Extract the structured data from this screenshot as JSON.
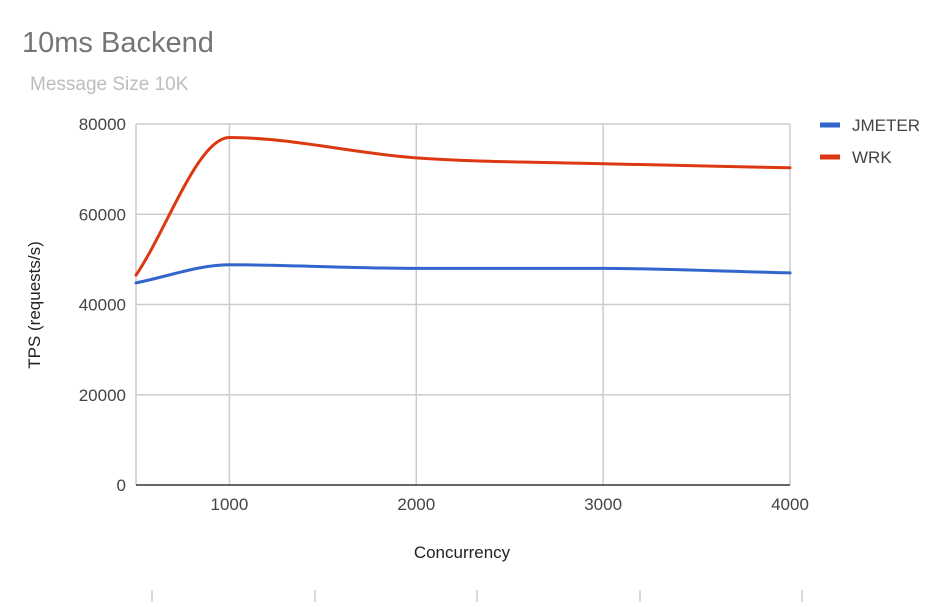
{
  "chart_data": {
    "type": "line",
    "title": "10ms Backend",
    "subtitle": "Message Size 10K",
    "xlabel": "Concurrency",
    "ylabel": "TPS (requests/s)",
    "x": [
      500,
      1000,
      2000,
      3000,
      4000
    ],
    "xlim": [
      500,
      4000
    ],
    "ylim": [
      0,
      80000
    ],
    "xticks": [
      1000,
      2000,
      3000,
      4000
    ],
    "yticks": [
      0,
      20000,
      40000,
      60000,
      80000
    ],
    "xtick_labels": [
      "1000",
      "2000",
      "3000",
      "4000"
    ],
    "ytick_labels": [
      "0",
      "20000",
      "40000",
      "60000",
      "80000"
    ],
    "grid": true,
    "smooth": true,
    "legend_position": "right",
    "series": [
      {
        "name": "JMETER",
        "color": "#3366cc",
        "values": [
          44800,
          48800,
          48000,
          48000,
          47000
        ]
      },
      {
        "name": "WRK",
        "color": "#dc3912",
        "values": [
          46500,
          77000,
          72500,
          71200,
          70300
        ]
      }
    ]
  }
}
